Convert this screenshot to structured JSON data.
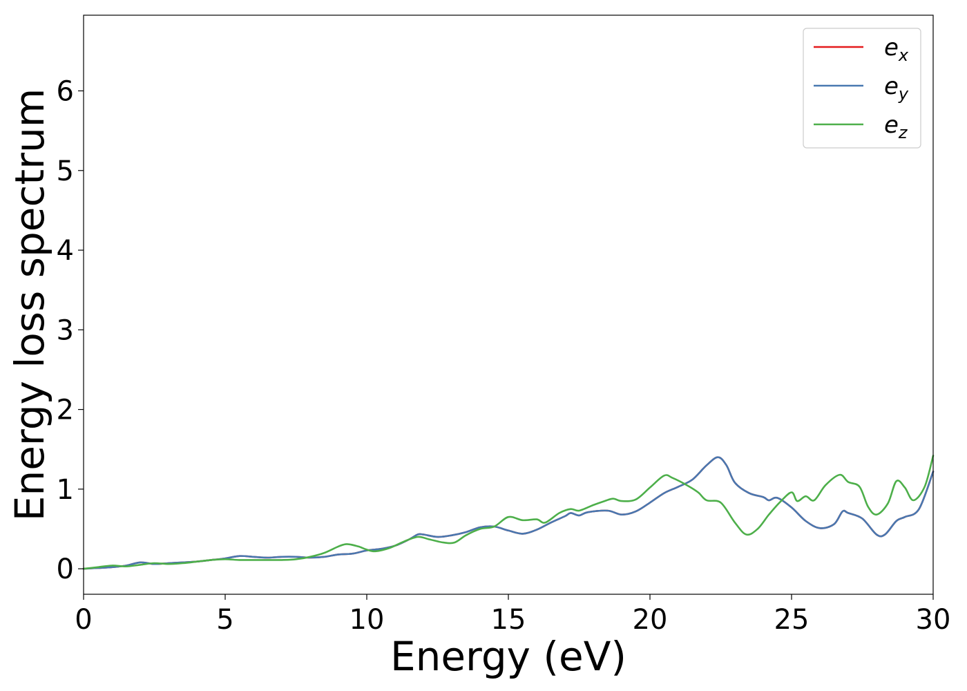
{
  "chart_data": {
    "type": "line",
    "title": "",
    "xlabel": "Energy (eV)",
    "ylabel": "Energy loss spectrum",
    "xlim": [
      0,
      30
    ],
    "ylim": [
      -0.32,
      6.95
    ],
    "xticks": [
      0,
      5,
      10,
      15,
      20,
      25,
      30
    ],
    "yticks": [
      0,
      1,
      2,
      3,
      4,
      5,
      6
    ],
    "grid": false,
    "legend_position": "top-right",
    "series": [
      {
        "name": "e",
        "subscript": "x",
        "color": "#e41a1c",
        "points": [
          [
            0,
            0
          ],
          [
            0.5,
            0.01
          ],
          [
            1,
            0.02
          ],
          [
            1.5,
            0.04
          ],
          [
            2,
            0.08
          ],
          [
            2.5,
            0.06
          ],
          [
            3,
            0.07
          ],
          [
            3.5,
            0.08
          ],
          [
            4,
            0.09
          ],
          [
            4.5,
            0.11
          ],
          [
            5,
            0.13
          ],
          [
            5.5,
            0.16
          ],
          [
            6,
            0.15
          ],
          [
            6.5,
            0.14
          ],
          [
            7,
            0.15
          ],
          [
            7.5,
            0.15
          ],
          [
            8,
            0.14
          ],
          [
            8.5,
            0.15
          ],
          [
            9,
            0.18
          ],
          [
            9.5,
            0.19
          ],
          [
            10,
            0.23
          ],
          [
            10.5,
            0.25
          ],
          [
            11,
            0.29
          ],
          [
            11.5,
            0.37
          ],
          [
            11.8,
            0.43
          ],
          [
            12,
            0.43
          ],
          [
            12.5,
            0.4
          ],
          [
            13,
            0.42
          ],
          [
            13.5,
            0.46
          ],
          [
            14,
            0.52
          ],
          [
            14.5,
            0.53
          ],
          [
            15,
            0.48
          ],
          [
            15.5,
            0.44
          ],
          [
            16,
            0.49
          ],
          [
            16.5,
            0.58
          ],
          [
            17,
            0.66
          ],
          [
            17.2,
            0.7
          ],
          [
            17.5,
            0.67
          ],
          [
            17.8,
            0.71
          ],
          [
            18.5,
            0.73
          ],
          [
            19,
            0.68
          ],
          [
            19.5,
            0.72
          ],
          [
            20,
            0.83
          ],
          [
            20.5,
            0.95
          ],
          [
            21,
            1.03
          ],
          [
            21.5,
            1.12
          ],
          [
            22,
            1.3
          ],
          [
            22.4,
            1.4
          ],
          [
            22.7,
            1.3
          ],
          [
            23,
            1.08
          ],
          [
            23.5,
            0.95
          ],
          [
            24,
            0.9
          ],
          [
            24.2,
            0.86
          ],
          [
            24.5,
            0.89
          ],
          [
            25,
            0.77
          ],
          [
            25.5,
            0.6
          ],
          [
            26,
            0.51
          ],
          [
            26.5,
            0.56
          ],
          [
            26.8,
            0.72
          ],
          [
            27,
            0.7
          ],
          [
            27.5,
            0.63
          ],
          [
            28,
            0.43
          ],
          [
            28.3,
            0.43
          ],
          [
            28.7,
            0.6
          ],
          [
            29,
            0.65
          ],
          [
            29.5,
            0.75
          ],
          [
            30,
            1.22
          ]
        ]
      },
      {
        "name": "e",
        "subscript": "y",
        "color": "#4878b0",
        "points": [
          [
            0,
            0
          ],
          [
            0.5,
            0.01
          ],
          [
            1,
            0.02
          ],
          [
            1.5,
            0.04
          ],
          [
            2,
            0.08
          ],
          [
            2.5,
            0.06
          ],
          [
            3,
            0.07
          ],
          [
            3.5,
            0.08
          ],
          [
            4,
            0.09
          ],
          [
            4.5,
            0.11
          ],
          [
            5,
            0.13
          ],
          [
            5.5,
            0.16
          ],
          [
            6,
            0.15
          ],
          [
            6.5,
            0.14
          ],
          [
            7,
            0.15
          ],
          [
            7.5,
            0.15
          ],
          [
            8,
            0.14
          ],
          [
            8.5,
            0.15
          ],
          [
            9,
            0.18
          ],
          [
            9.5,
            0.19
          ],
          [
            10,
            0.23
          ],
          [
            10.5,
            0.25
          ],
          [
            11,
            0.29
          ],
          [
            11.5,
            0.37
          ],
          [
            11.8,
            0.43
          ],
          [
            12,
            0.43
          ],
          [
            12.5,
            0.4
          ],
          [
            13,
            0.42
          ],
          [
            13.5,
            0.46
          ],
          [
            14,
            0.52
          ],
          [
            14.5,
            0.53
          ],
          [
            15,
            0.48
          ],
          [
            15.5,
            0.44
          ],
          [
            16,
            0.49
          ],
          [
            16.5,
            0.58
          ],
          [
            17,
            0.66
          ],
          [
            17.2,
            0.7
          ],
          [
            17.5,
            0.67
          ],
          [
            17.8,
            0.71
          ],
          [
            18.5,
            0.73
          ],
          [
            19,
            0.68
          ],
          [
            19.5,
            0.72
          ],
          [
            20,
            0.83
          ],
          [
            20.5,
            0.95
          ],
          [
            21,
            1.03
          ],
          [
            21.5,
            1.12
          ],
          [
            22,
            1.3
          ],
          [
            22.4,
            1.4
          ],
          [
            22.7,
            1.3
          ],
          [
            23,
            1.08
          ],
          [
            23.5,
            0.95
          ],
          [
            24,
            0.9
          ],
          [
            24.2,
            0.86
          ],
          [
            24.5,
            0.89
          ],
          [
            25,
            0.77
          ],
          [
            25.5,
            0.6
          ],
          [
            26,
            0.51
          ],
          [
            26.5,
            0.56
          ],
          [
            26.8,
            0.72
          ],
          [
            27,
            0.7
          ],
          [
            27.5,
            0.63
          ],
          [
            28,
            0.43
          ],
          [
            28.3,
            0.43
          ],
          [
            28.7,
            0.6
          ],
          [
            29,
            0.65
          ],
          [
            29.5,
            0.75
          ],
          [
            30,
            1.22
          ]
        ]
      },
      {
        "name": "e",
        "subscript": "z",
        "color": "#4daf4a",
        "points": [
          [
            0,
            0
          ],
          [
            0.5,
            0.02
          ],
          [
            1,
            0.04
          ],
          [
            1.5,
            0.03
          ],
          [
            2,
            0.05
          ],
          [
            2.5,
            0.07
          ],
          [
            3,
            0.06
          ],
          [
            3.5,
            0.07
          ],
          [
            4,
            0.09
          ],
          [
            4.5,
            0.11
          ],
          [
            5,
            0.12
          ],
          [
            5.5,
            0.11
          ],
          [
            6,
            0.11
          ],
          [
            6.5,
            0.11
          ],
          [
            7,
            0.11
          ],
          [
            7.5,
            0.12
          ],
          [
            8,
            0.15
          ],
          [
            8.5,
            0.2
          ],
          [
            9,
            0.28
          ],
          [
            9.3,
            0.31
          ],
          [
            9.7,
            0.28
          ],
          [
            10,
            0.24
          ],
          [
            10.3,
            0.22
          ],
          [
            10.8,
            0.26
          ],
          [
            11.3,
            0.34
          ],
          [
            11.8,
            0.4
          ],
          [
            12.2,
            0.37
          ],
          [
            12.7,
            0.33
          ],
          [
            13.1,
            0.33
          ],
          [
            13.5,
            0.42
          ],
          [
            14,
            0.5
          ],
          [
            14.5,
            0.53
          ],
          [
            15,
            0.65
          ],
          [
            15.5,
            0.61
          ],
          [
            16,
            0.62
          ],
          [
            16.3,
            0.58
          ],
          [
            16.8,
            0.7
          ],
          [
            17.2,
            0.75
          ],
          [
            17.5,
            0.73
          ],
          [
            18,
            0.8
          ],
          [
            18.4,
            0.85
          ],
          [
            18.7,
            0.88
          ],
          [
            19,
            0.85
          ],
          [
            19.5,
            0.87
          ],
          [
            20,
            1.02
          ],
          [
            20.5,
            1.17
          ],
          [
            20.8,
            1.14
          ],
          [
            21.3,
            1.05
          ],
          [
            21.7,
            0.96
          ],
          [
            22,
            0.86
          ],
          [
            22.5,
            0.83
          ],
          [
            23,
            0.58
          ],
          [
            23.4,
            0.43
          ],
          [
            23.8,
            0.5
          ],
          [
            24.2,
            0.68
          ],
          [
            24.6,
            0.84
          ],
          [
            25,
            0.96
          ],
          [
            25.2,
            0.85
          ],
          [
            25.5,
            0.91
          ],
          [
            25.8,
            0.86
          ],
          [
            26.2,
            1.05
          ],
          [
            26.7,
            1.18
          ],
          [
            27,
            1.09
          ],
          [
            27.4,
            1.03
          ],
          [
            27.7,
            0.78
          ],
          [
            28,
            0.68
          ],
          [
            28.4,
            0.82
          ],
          [
            28.7,
            1.1
          ],
          [
            29,
            1.02
          ],
          [
            29.3,
            0.86
          ],
          [
            29.7,
            1.03
          ],
          [
            30,
            1.42
          ]
        ]
      }
    ]
  }
}
